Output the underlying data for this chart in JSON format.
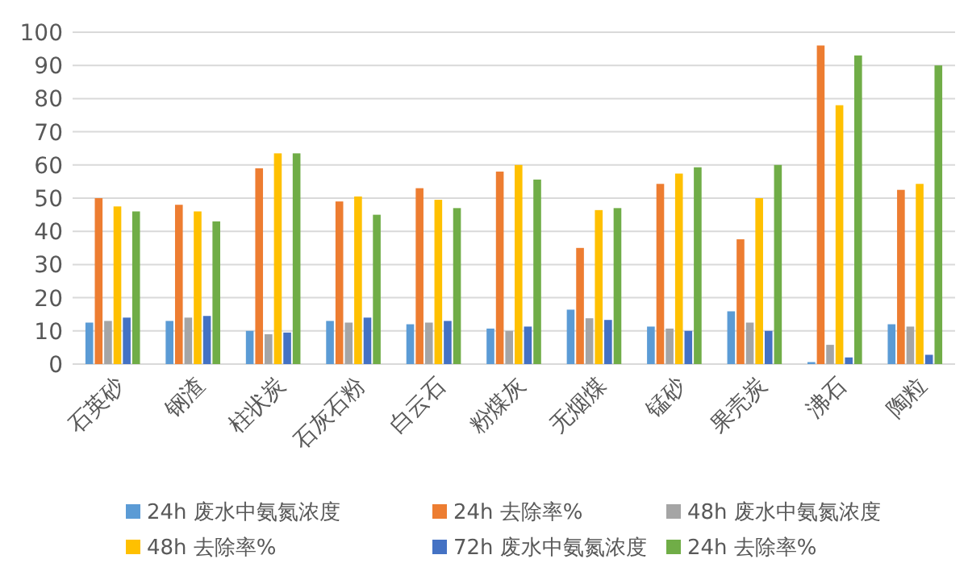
{
  "chart_data": {
    "type": "bar",
    "categories": [
      "石英砂",
      "钢渣",
      "柱状炭",
      "石灰石粉",
      "白云石",
      "粉煤灰",
      "无烟煤",
      "锰砂",
      "果壳炭",
      "沸石",
      "陶粒"
    ],
    "series": [
      {
        "name": "24h 废水中氨氮浓度",
        "color": "#5b9bd5",
        "values": [
          12.5,
          13,
          10,
          13,
          12,
          10.7,
          16.4,
          11.3,
          15.9,
          0.6,
          12
        ]
      },
      {
        "name": "24h 去除率%",
        "color": "#ed7d31",
        "values": [
          50,
          48,
          59,
          49,
          53,
          58,
          35,
          54.3,
          37.6,
          96,
          52.5
        ]
      },
      {
        "name": "48h 废水中氨氮浓度",
        "color": "#a5a5a5",
        "values": [
          13,
          14,
          9,
          12.5,
          12.5,
          10,
          13.8,
          10.7,
          12.5,
          5.8,
          11.3
        ]
      },
      {
        "name": "48h 去除率%",
        "color": "#ffc000",
        "values": [
          47.5,
          46,
          63.5,
          50.5,
          49.5,
          60,
          46.4,
          57.4,
          50,
          78,
          54.3
        ]
      },
      {
        "name": "72h 废水中氨氮浓度",
        "color": "#4472c4",
        "values": [
          14,
          14.5,
          9.5,
          14,
          13,
          11.3,
          13.3,
          10,
          10,
          2,
          2.8
        ]
      },
      {
        "name": "24h 去除率%",
        "color": "#70ad47",
        "values": [
          46,
          43,
          63.5,
          45,
          47,
          55.6,
          47,
          59.3,
          60,
          93,
          90
        ]
      }
    ],
    "ylim": [
      0,
      100
    ],
    "yticks": [
      0,
      10,
      20,
      30,
      40,
      50,
      60,
      70,
      80,
      90,
      100
    ],
    "grid": "y",
    "legend": "bottom"
  }
}
